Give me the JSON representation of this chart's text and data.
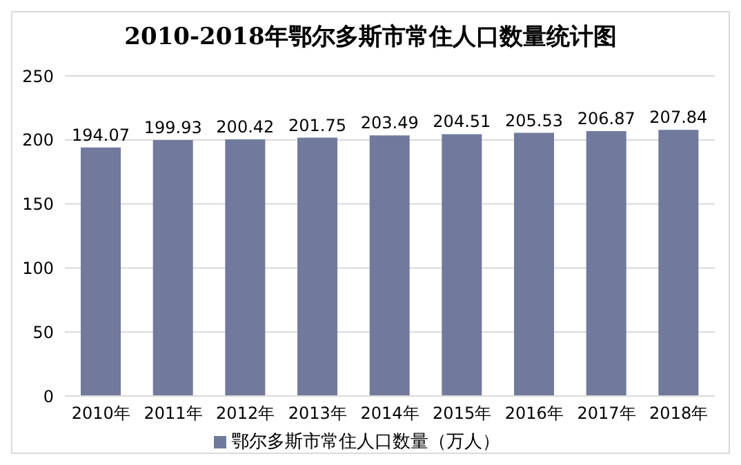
{
  "chart_data": {
    "type": "bar",
    "title": "2010-2018年鄂尔多斯市常住人口数量统计图",
    "categories": [
      "2010年",
      "2011年",
      "2012年",
      "2013年",
      "2014年",
      "2015年",
      "2016年",
      "2017年",
      "2018年"
    ],
    "series": [
      {
        "name": "鄂尔多斯市常住人口数量（万人）",
        "color": "#717a9d",
        "values": [
          194.07,
          199.93,
          200.42,
          201.75,
          203.49,
          204.51,
          205.53,
          206.87,
          207.84
        ]
      }
    ],
    "ylim": [
      0,
      250
    ],
    "yticks": [
      0,
      50,
      100,
      150,
      200,
      250
    ],
    "grid": "y",
    "legend": "bottom",
    "data_labels": true
  }
}
